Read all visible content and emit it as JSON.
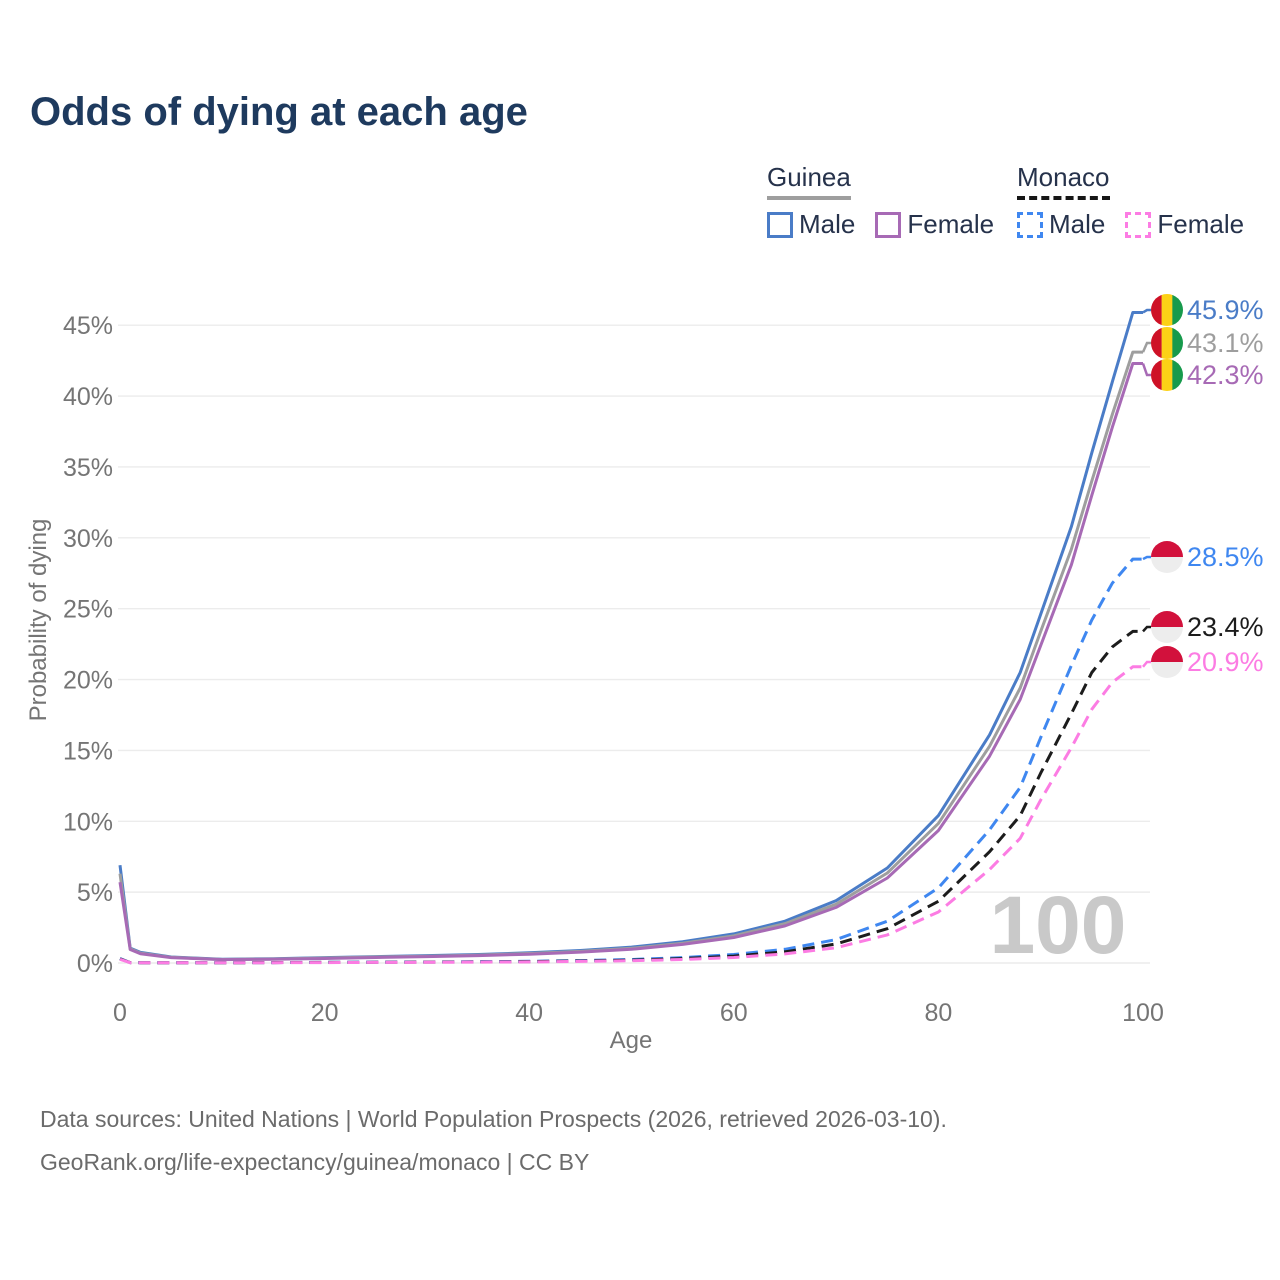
{
  "title": "Odds of dying at each age",
  "age_counter": "100",
  "legend": {
    "groups": [
      {
        "name": "Guinea",
        "line_style": "solid",
        "underline_color": "#9e9e9e",
        "items": [
          {
            "label": "Male",
            "color": "#4a7cc7"
          },
          {
            "label": "Female",
            "color": "#a76ab5"
          }
        ]
      },
      {
        "name": "Monaco",
        "line_style": "dashed",
        "underline_color": "#161616",
        "items": [
          {
            "label": "Male",
            "color": "#3f87f0"
          },
          {
            "label": "Female",
            "color": "#fc7ce3"
          }
        ]
      }
    ]
  },
  "chart_data": {
    "type": "line",
    "title": "Odds of dying at each age",
    "xlabel": "Age",
    "ylabel": "Probability of dying",
    "xlim": [
      0,
      100
    ],
    "ylim_percent": [
      0,
      47
    ],
    "grid": "horizontal",
    "x_tick_values": [
      0,
      20,
      40,
      60,
      80,
      100
    ],
    "x_tick_labels": [
      "0",
      "20",
      "40",
      "60",
      "80",
      "100"
    ],
    "y_tick_values": [
      0,
      5,
      10,
      15,
      20,
      25,
      30,
      35,
      40,
      45
    ],
    "y_tick_labels": [
      "0%",
      "5%",
      "10%",
      "15%",
      "20%",
      "25%",
      "30%",
      "35%",
      "40%",
      "45%"
    ],
    "x_ages": [
      0,
      1,
      2,
      5,
      10,
      15,
      20,
      25,
      30,
      35,
      40,
      45,
      50,
      55,
      60,
      65,
      70,
      75,
      80,
      85,
      88,
      90,
      93,
      95,
      97,
      99,
      100
    ],
    "series": [
      {
        "name": "Guinea Male",
        "color": "#4a7cc7",
        "dashed": false,
        "flag": "guinea",
        "end_label": "45.9%",
        "values_percent": [
          6.9,
          1.05,
          0.75,
          0.42,
          0.27,
          0.3,
          0.38,
          0.45,
          0.52,
          0.6,
          0.72,
          0.88,
          1.12,
          1.5,
          2.05,
          2.95,
          4.4,
          6.7,
          10.4,
          16.1,
          20.5,
          24.6,
          30.8,
          36.0,
          41.0,
          45.9,
          45.9
        ]
      },
      {
        "name": "Guinea",
        "color": "#9e9e9e",
        "dashed": false,
        "flag": "guinea",
        "end_label": "43.1%",
        "values_percent": [
          6.3,
          1.0,
          0.7,
          0.4,
          0.25,
          0.28,
          0.35,
          0.42,
          0.48,
          0.56,
          0.67,
          0.82,
          1.04,
          1.4,
          1.92,
          2.78,
          4.15,
          6.35,
          9.85,
          15.3,
          19.4,
          23.4,
          29.2,
          34.0,
          38.7,
          43.1,
          43.1
        ]
      },
      {
        "name": "Guinea Female",
        "color": "#a76ab5",
        "dashed": false,
        "flag": "guinea",
        "end_label": "42.3%",
        "values_percent": [
          5.7,
          0.95,
          0.65,
          0.38,
          0.24,
          0.26,
          0.32,
          0.39,
          0.45,
          0.52,
          0.62,
          0.77,
          0.97,
          1.31,
          1.8,
          2.62,
          3.92,
          6.0,
          9.35,
          14.6,
          18.6,
          22.4,
          28.1,
          33.0,
          37.8,
          42.3,
          42.3
        ]
      },
      {
        "name": "Monaco Male",
        "color": "#3f87f0",
        "dashed": true,
        "flag": "monaco",
        "end_label": "28.5%",
        "values_percent": [
          0.32,
          0.03,
          0.02,
          0.015,
          0.015,
          0.03,
          0.05,
          0.06,
          0.07,
          0.09,
          0.12,
          0.17,
          0.25,
          0.38,
          0.6,
          0.97,
          1.65,
          2.95,
          5.3,
          9.4,
          12.4,
          15.9,
          21.0,
          24.2,
          26.8,
          28.5,
          28.5
        ]
      },
      {
        "name": "Monaco",
        "color": "#1c1c1c",
        "dashed": true,
        "flag": "monaco",
        "end_label": "23.4%",
        "values_percent": [
          0.29,
          0.027,
          0.018,
          0.013,
          0.013,
          0.025,
          0.04,
          0.05,
          0.06,
          0.075,
          0.1,
          0.14,
          0.2,
          0.31,
          0.49,
          0.79,
          1.34,
          2.42,
          4.35,
          7.85,
          10.4,
          13.4,
          17.6,
          20.5,
          22.3,
          23.4,
          23.4
        ]
      },
      {
        "name": "Monaco Female",
        "color": "#fc7ce3",
        "dashed": true,
        "flag": "monaco",
        "end_label": "20.9%",
        "values_percent": [
          0.26,
          0.024,
          0.016,
          0.011,
          0.011,
          0.02,
          0.03,
          0.04,
          0.05,
          0.06,
          0.08,
          0.11,
          0.16,
          0.25,
          0.39,
          0.64,
          1.08,
          1.98,
          3.6,
          6.6,
          8.8,
          11.5,
          15.2,
          17.9,
          19.8,
          20.9,
          20.9
        ]
      }
    ],
    "flag_colors": {
      "guinea": [
        "#ce1126",
        "#fcd116",
        "#179a4c"
      ],
      "monaco": [
        "#d2113c",
        "#ededed"
      ]
    },
    "grid_color": "#ececec",
    "tick_color": "#757575",
    "watermark_color": "#c9c9c9"
  },
  "footer": {
    "line1": "Data sources: United Nations | World Population Prospects (2026, retrieved 2026-03-10).",
    "line2": "GeoRank.org/life-expectancy/guinea/monaco | CC BY"
  }
}
